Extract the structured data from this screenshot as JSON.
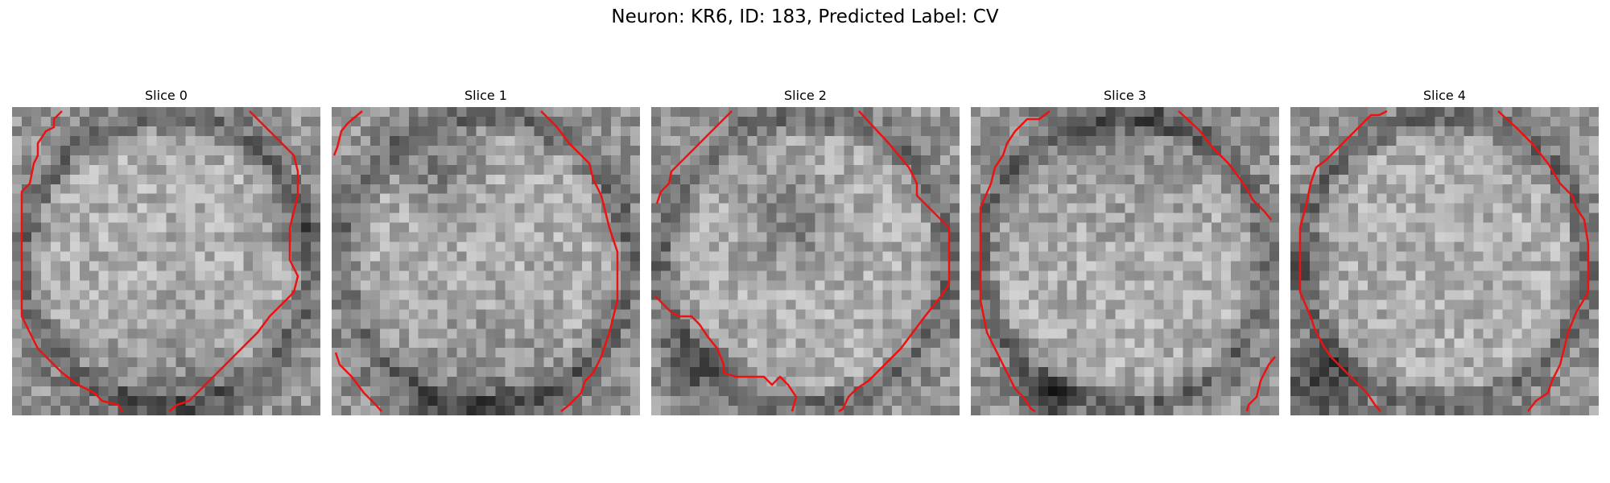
{
  "figure": {
    "title": "Neuron: KR6, ID: 183, Predicted Label: CV",
    "outline_color": "#ee1111",
    "grid_size": 32,
    "panels": [
      {
        "title": "Slice 0",
        "seed": 11,
        "dark": [
          [
            0.5,
            0.95,
            0.25,
            0.35
          ],
          [
            0.9,
            0.4,
            0.1,
            0.3
          ]
        ]
      },
      {
        "title": "Slice 1",
        "seed": 23,
        "dark": [
          [
            0.35,
            0.2,
            0.12,
            0.45
          ],
          [
            0.5,
            1.0,
            0.3,
            0.4
          ]
        ]
      },
      {
        "title": "Slice 2",
        "seed": 37,
        "dark": [
          [
            0.45,
            0.35,
            0.15,
            0.45
          ],
          [
            0.15,
            0.85,
            0.12,
            0.45
          ]
        ]
      },
      {
        "title": "Slice 3",
        "seed": 41,
        "dark": [
          [
            0.5,
            0.05,
            0.3,
            0.3
          ],
          [
            0.25,
            0.95,
            0.1,
            0.6
          ]
        ]
      },
      {
        "title": "Slice 4",
        "seed": 53,
        "dark": [
          [
            0.1,
            0.9,
            0.12,
            0.7
          ],
          [
            0.05,
            0.5,
            0.08,
            0.35
          ]
        ]
      }
    ]
  }
}
